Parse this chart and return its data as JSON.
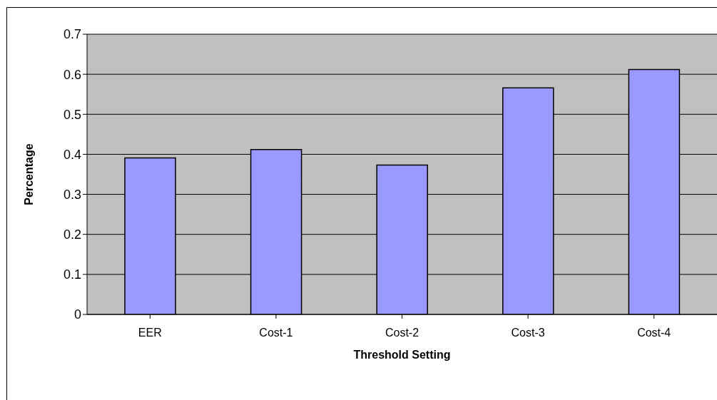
{
  "chart_data": {
    "type": "bar",
    "xlabel": "Threshold Setting",
    "ylabel": "Percentage",
    "categories": [
      "EER",
      "Cost-1",
      "Cost-2",
      "Cost-3",
      "Cost-4"
    ],
    "values": [
      0.391,
      0.412,
      0.373,
      0.566,
      0.612
    ],
    "color": "#9999ff",
    "ylim": [
      0,
      0.7
    ],
    "yticks": [
      0,
      0.1,
      0.2,
      0.3,
      0.4,
      0.5,
      0.6,
      0.7
    ],
    "grid": "y",
    "legend": false
  }
}
